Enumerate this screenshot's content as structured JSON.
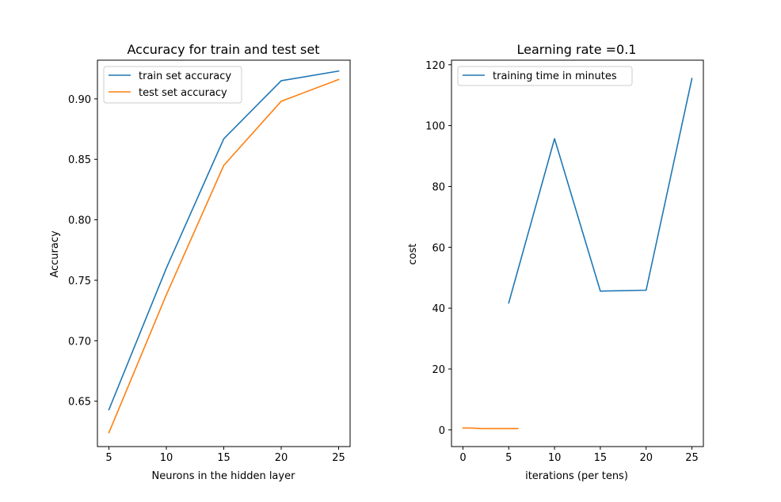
{
  "figure": {
    "background": "#ffffff"
  },
  "chart_data": [
    {
      "type": "line",
      "title": "Accuracy for train and test set",
      "xlabel": "Neurons in the hidden layer",
      "ylabel": "Accuracy",
      "xlim": [
        4.0,
        26.0
      ],
      "ylim": [
        0.6125,
        0.932
      ],
      "xticks": [
        5,
        10,
        15,
        20,
        25
      ],
      "yticks": [
        0.65,
        0.7,
        0.75,
        0.8,
        0.85,
        0.9
      ],
      "ytick_labels": [
        "0.65",
        "0.70",
        "0.75",
        "0.80",
        "0.85",
        "0.90"
      ],
      "grid": false,
      "legend_position": "top-left",
      "series": [
        {
          "name": "train set accuracy",
          "color": "#1f77b4",
          "x": [
            5,
            10,
            15,
            20,
            25
          ],
          "y": [
            0.643,
            0.76,
            0.867,
            0.915,
            0.923
          ]
        },
        {
          "name": "test set accuracy",
          "color": "#ff7f0e",
          "x": [
            5,
            10,
            15,
            20,
            25
          ],
          "y": [
            0.624,
            0.738,
            0.845,
            0.898,
            0.916
          ]
        }
      ]
    },
    {
      "type": "line",
      "title": "Learning rate =0.1",
      "xlabel": "iterations (per tens)",
      "ylabel": "cost",
      "xlim": [
        -1.25,
        26.25
      ],
      "ylim": [
        -5.5,
        121.5
      ],
      "xticks": [
        0,
        5,
        10,
        15,
        20,
        25
      ],
      "yticks": [
        0,
        20,
        40,
        60,
        80,
        100,
        120
      ],
      "ytick_labels": [
        "0",
        "20",
        "40",
        "60",
        "80",
        "100",
        "120"
      ],
      "grid": false,
      "legend_position": "top-left",
      "series": [
        {
          "name": "training time in minutes",
          "color": "#1f77b4",
          "x": [
            5,
            10,
            15,
            20,
            25
          ],
          "y": [
            41.7,
            95.7,
            45.6,
            45.9,
            115.5
          ]
        },
        {
          "color": "#ff7f0e",
          "x": [
            0,
            1,
            2,
            3,
            4,
            5,
            6
          ],
          "y": [
            0.6,
            0.6,
            0.4,
            0.4,
            0.4,
            0.4,
            0.4
          ]
        }
      ]
    }
  ]
}
